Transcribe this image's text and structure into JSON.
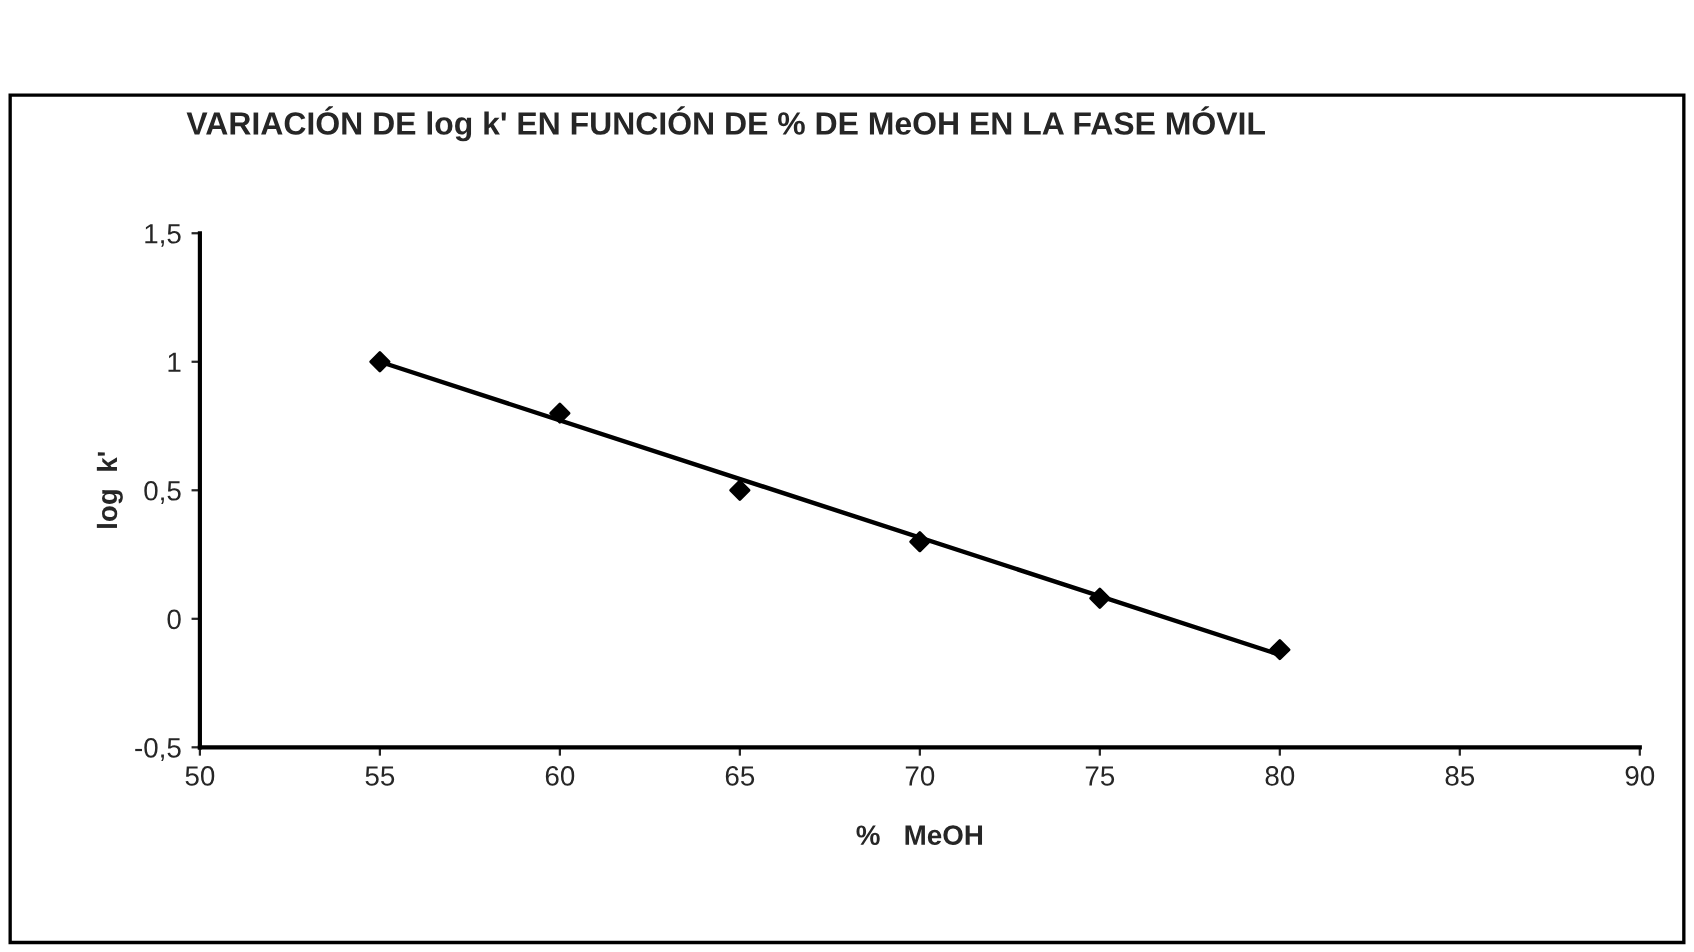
{
  "chart_data": {
    "type": "scatter",
    "title": "VARIACIÓN DE log k' EN FUNCIÓN DE % DE MeOH EN LA FASE MÓVIL",
    "xlabel": "%   MeOH",
    "ylabel": "log  k'",
    "series": [
      {
        "color": "#000000",
        "marker": "diamond",
        "x": [
          55,
          60,
          65,
          70,
          75,
          80
        ],
        "values": [
          1.0,
          0.8,
          0.5,
          0.3,
          0.08,
          -0.12
        ]
      },
      {
        "type": "line",
        "color": "#000000",
        "marker": "none",
        "line_style": "solid",
        "x": [
          55,
          80
        ],
        "values": [
          1.0,
          -0.14
        ]
      }
    ],
    "xlim": [
      50,
      90
    ],
    "xticks": [
      50,
      55,
      60,
      65,
      70,
      75,
      80,
      85,
      90
    ],
    "ylim": [
      -0.5,
      1.5
    ],
    "yticks": [
      {
        "value": -0.5,
        "label": "-0,5"
      },
      0,
      {
        "value": 0.5,
        "label": "0,5"
      },
      1,
      {
        "value": 1.5,
        "label": "1,5"
      }
    ],
    "grid": false,
    "legend": false
  }
}
